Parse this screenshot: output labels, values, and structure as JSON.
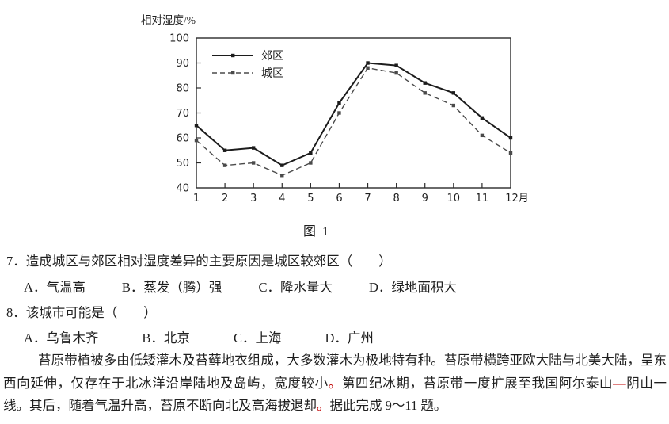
{
  "page": {
    "background": "#ffffff",
    "text_color": "#1f1f1f",
    "red_color": "#c00000"
  },
  "figure": {
    "caption": "图 1"
  },
  "chart_data": {
    "type": "line",
    "title": "图 1",
    "xlabel": "月",
    "ylabel": "相对湿度/%",
    "x_tick_labels": [
      "1",
      "2",
      "3",
      "4",
      "5",
      "6",
      "7",
      "8",
      "9",
      "10",
      "11",
      "12月"
    ],
    "ylim": [
      40,
      100
    ],
    "y_ticks": [
      40,
      50,
      60,
      70,
      80,
      90,
      100
    ],
    "grid": false,
    "legend_position": "upper-left-inside",
    "series": [
      {
        "name": "郊区",
        "line": "solid",
        "color": "#1c1c1c",
        "values": [
          65,
          55,
          56,
          49,
          54,
          74,
          90,
          89,
          82,
          78,
          68,
          60
        ]
      },
      {
        "name": "城区",
        "line": "dashed",
        "color": "#4a4a4a",
        "values": [
          59,
          49,
          50,
          45,
          50,
          70,
          88,
          86,
          78,
          73,
          61,
          54
        ]
      }
    ]
  },
  "questions": [
    {
      "number": "7．",
      "stem": "造成城区与郊区相对湿度差异的主要原因是城区较郊区（　　）",
      "options": [
        "A．气温高",
        "B．蒸发（腾）强",
        "C．降水量大",
        "D．绿地面积大"
      ]
    },
    {
      "number": "8．",
      "stem": "该城市可能是（　　）",
      "options": [
        "A．乌鲁木齐",
        "B．北京",
        "C．上海",
        "D．广州"
      ]
    }
  ],
  "passage": {
    "segments": [
      {
        "text": "苔原带植被多由低矮灌木及苔藓地衣组成，大多数灌木为极地特有种。苔原带横跨亚欧大陆与北美大陆，呈东西向延伸，仅存在于北冰洋沿岸陆地及岛屿，宽度较小",
        "red": false
      },
      {
        "text": "。",
        "red": true
      },
      {
        "text": "第四纪冰期，苔原带一度扩展至我国阿尔泰山",
        "red": false
      },
      {
        "text": "—",
        "red": true
      },
      {
        "text": "阴山一线。其后，随着气温升高，苔原不断向北及高海拔退却",
        "red": false
      },
      {
        "text": "。",
        "red": true
      },
      {
        "text": "据此完成 9～11 题。",
        "red": false
      }
    ]
  }
}
